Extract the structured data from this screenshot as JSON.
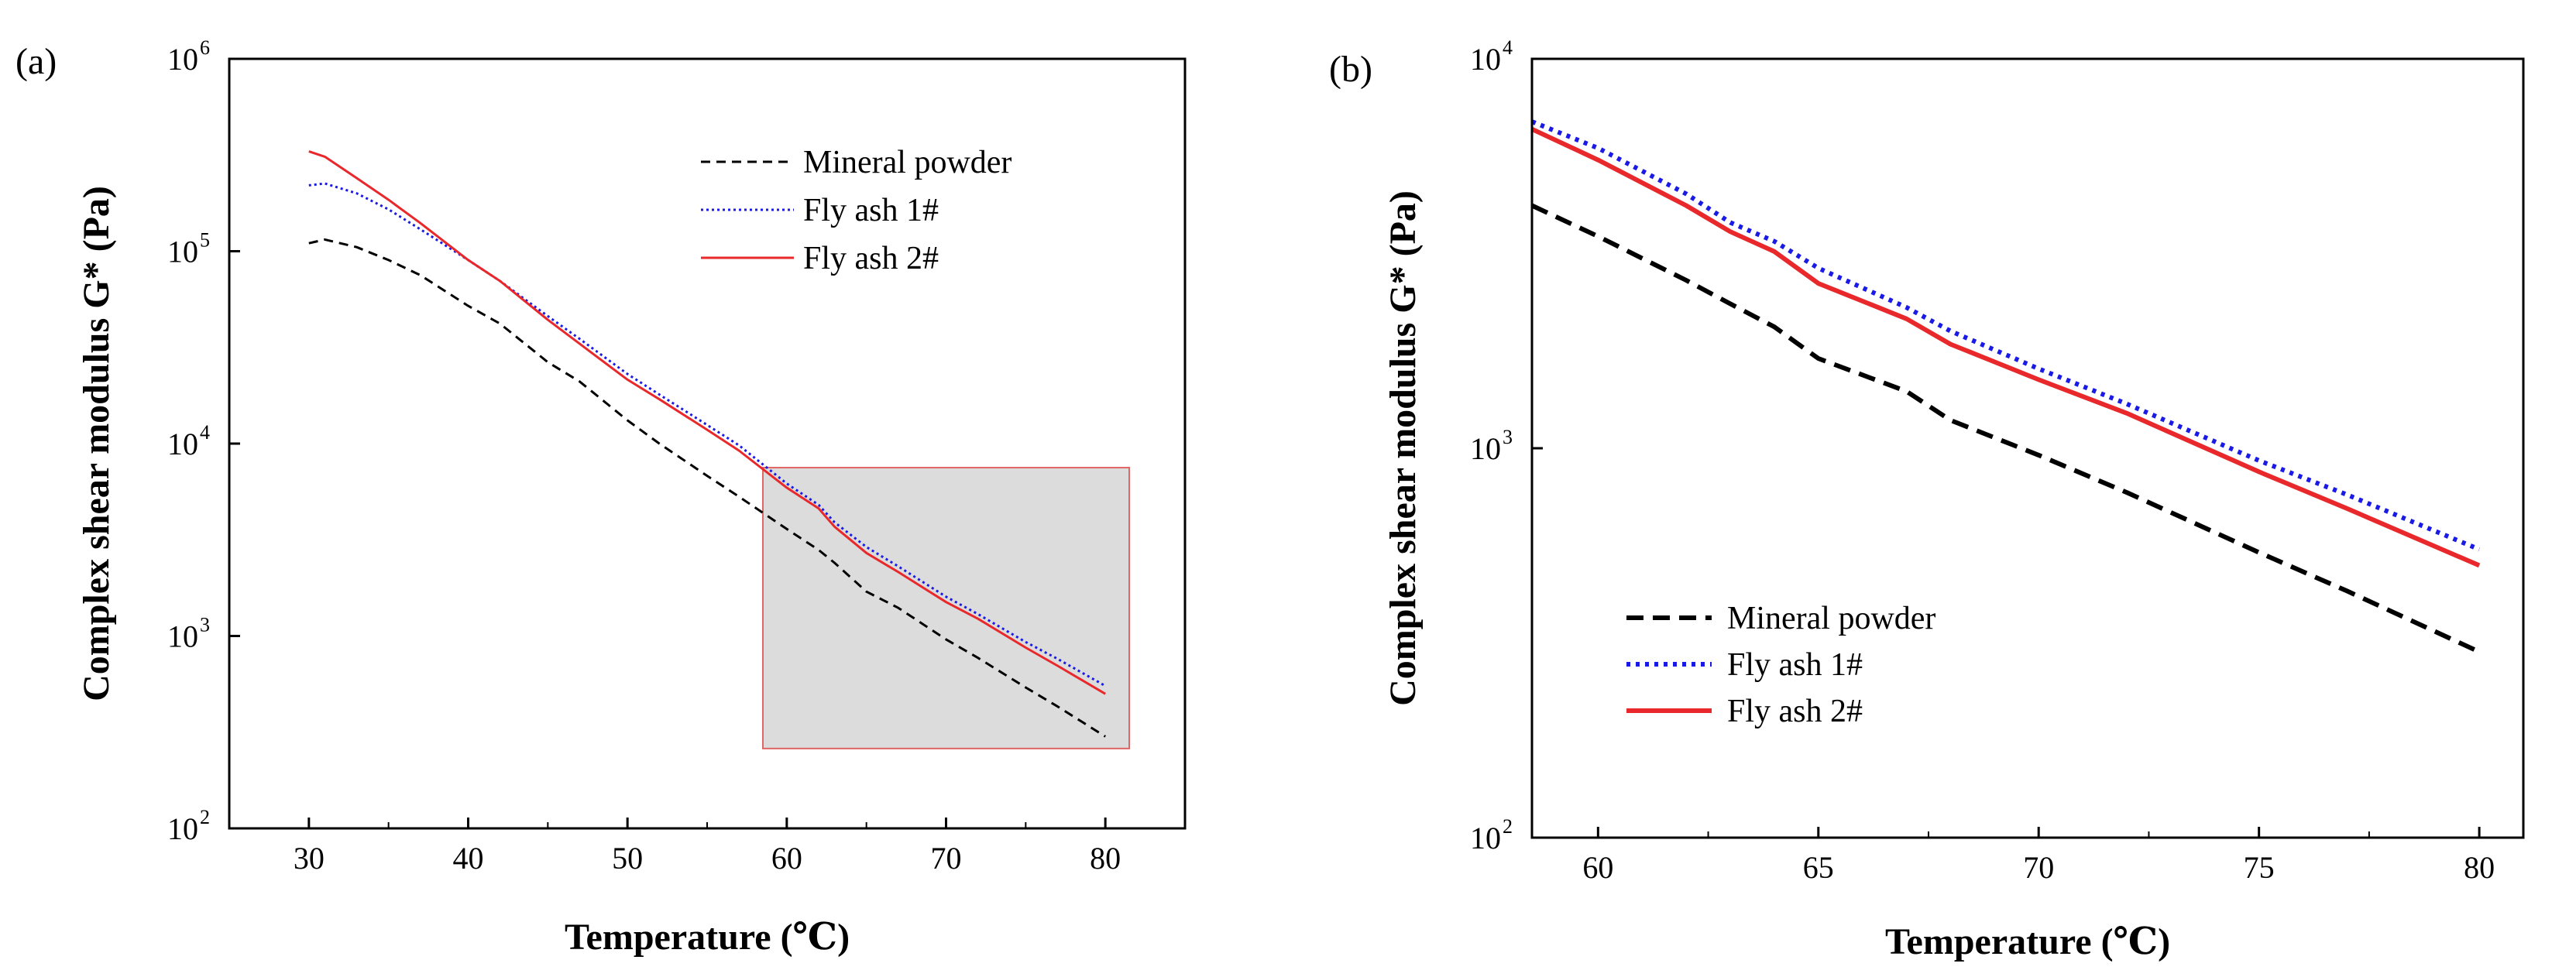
{
  "chart_data": [
    {
      "panel_label": "(a)",
      "type": "line",
      "xlabel": "Temperature (℃)",
      "ylabel": "Complex shear modulus G* (Pa)",
      "yscale": "log",
      "xlim": [
        25,
        85
      ],
      "ylim": [
        100,
        1000000
      ],
      "x_ticks": [
        30,
        40,
        50,
        60,
        70,
        80
      ],
      "y_ticks": [
        {
          "base": "10",
          "exp": "2",
          "value": 100
        },
        {
          "base": "10",
          "exp": "3",
          "value": 1000
        },
        {
          "base": "10",
          "exp": "4",
          "value": 10000
        },
        {
          "base": "10",
          "exp": "5",
          "value": 100000
        },
        {
          "base": "10",
          "exp": "6",
          "value": 1000000
        }
      ],
      "legend_position": "top-right",
      "highlight_region": {
        "x": [
          58.5,
          81.5
        ],
        "y": [
          260,
          7500
        ],
        "fill": "#dcdcdc",
        "stroke": "#e06666"
      },
      "series": [
        {
          "name": "Mineral powder",
          "color": "#000000",
          "style": "dashed",
          "x": [
            30,
            31,
            33,
            35,
            37,
            40,
            42,
            45,
            47,
            50,
            52,
            55,
            57,
            60,
            62,
            63,
            65,
            67,
            70,
            72,
            75,
            77,
            80
          ],
          "y": [
            110000,
            115000,
            105000,
            90000,
            75000,
            52000,
            42000,
            26500,
            21000,
            13200,
            10000,
            6800,
            5300,
            3600,
            2800,
            2400,
            1700,
            1400,
            960,
            770,
            540,
            430,
            300
          ]
        },
        {
          "name": "Fly ash 1#",
          "color": "#1a1ae6",
          "style": "dotted",
          "x": [
            30,
            31,
            33,
            35,
            37,
            40,
            42,
            45,
            47,
            50,
            52,
            55,
            57,
            60,
            62,
            63,
            65,
            67,
            70,
            72,
            75,
            77,
            80
          ],
          "y": [
            220000,
            225000,
            200000,
            165000,
            130000,
            90000,
            70000,
            46000,
            35000,
            23000,
            18000,
            12500,
            9800,
            6200,
            4800,
            3900,
            2900,
            2300,
            1600,
            1300,
            930,
            760,
            550
          ]
        },
        {
          "name": "Fly ash 2#",
          "color": "#e8282b",
          "style": "solid",
          "x": [
            30,
            31,
            33,
            35,
            37,
            40,
            42,
            45,
            47,
            50,
            52,
            55,
            57,
            60,
            62,
            63,
            65,
            67,
            70,
            72,
            75,
            77,
            80
          ],
          "y": [
            330000,
            310000,
            240000,
            185000,
            140000,
            90000,
            70000,
            44000,
            33000,
            21500,
            17000,
            11800,
            9200,
            5900,
            4600,
            3700,
            2700,
            2150,
            1500,
            1230,
            870,
            700,
            500
          ]
        }
      ]
    },
    {
      "panel_label": "(b)",
      "type": "line",
      "xlabel": "Temperature (℃)",
      "ylabel": "Complex shear modulus G* (Pa)",
      "yscale": "log",
      "xlim": [
        58.5,
        81
      ],
      "ylim": [
        100,
        10000
      ],
      "x_ticks": [
        60,
        65,
        70,
        75,
        80
      ],
      "y_ticks": [
        {
          "base": "10",
          "exp": "2",
          "value": 100
        },
        {
          "base": "10",
          "exp": "3",
          "value": 1000
        },
        {
          "base": "10",
          "exp": "4",
          "value": 10000
        }
      ],
      "legend_position": "bottom-left",
      "series": [
        {
          "name": "Mineral powder",
          "color": "#000000",
          "style": "dashed",
          "x": [
            58.5,
            60,
            62,
            63,
            64,
            65,
            67,
            68,
            70,
            72,
            75,
            77,
            80
          ],
          "y": [
            4200,
            3500,
            2700,
            2350,
            2050,
            1700,
            1400,
            1180,
            960,
            770,
            540,
            430,
            300
          ]
        },
        {
          "name": "Fly ash 1#",
          "color": "#1a1ae6",
          "style": "dotted",
          "x": [
            58.5,
            60,
            62,
            63,
            64,
            65,
            67,
            68,
            70,
            72,
            75,
            77,
            80
          ],
          "y": [
            6900,
            5900,
            4500,
            3800,
            3400,
            2900,
            2300,
            2000,
            1600,
            1300,
            930,
            760,
            550
          ]
        },
        {
          "name": "Fly ash 2#",
          "color": "#e8282b",
          "style": "solid",
          "x": [
            58.5,
            60,
            62,
            63,
            64,
            65,
            67,
            68,
            70,
            72,
            75,
            77,
            80
          ],
          "y": [
            6600,
            5500,
            4200,
            3600,
            3200,
            2650,
            2150,
            1850,
            1500,
            1230,
            870,
            700,
            500
          ]
        }
      ]
    }
  ]
}
